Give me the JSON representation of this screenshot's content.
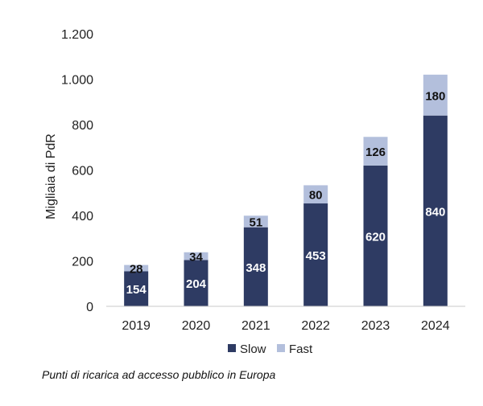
{
  "caption": "Punti di ricarica ad accesso pubblico in Europa",
  "chart_data": {
    "type": "bar",
    "stacked": true,
    "categories": [
      "2019",
      "2020",
      "2021",
      "2022",
      "2023",
      "2024"
    ],
    "series": [
      {
        "name": "Slow",
        "color": "#2e3b63",
        "label_color": "#ffffff",
        "values": [
          154,
          204,
          348,
          453,
          620,
          840
        ]
      },
      {
        "name": "Fast",
        "color": "#b3bfdc",
        "label_color": "#111111",
        "values": [
          28,
          34,
          51,
          80,
          126,
          180
        ]
      }
    ],
    "ylabel": "Migliaia di PdR",
    "ylim": [
      0,
      1200
    ],
    "yticks": [
      0,
      200,
      400,
      600,
      800,
      1000,
      1200
    ],
    "ytick_labels": [
      "0",
      "200",
      "400",
      "600",
      "800",
      "1.000",
      "1.200"
    ],
    "grid": false,
    "legend_position": "bottom"
  }
}
